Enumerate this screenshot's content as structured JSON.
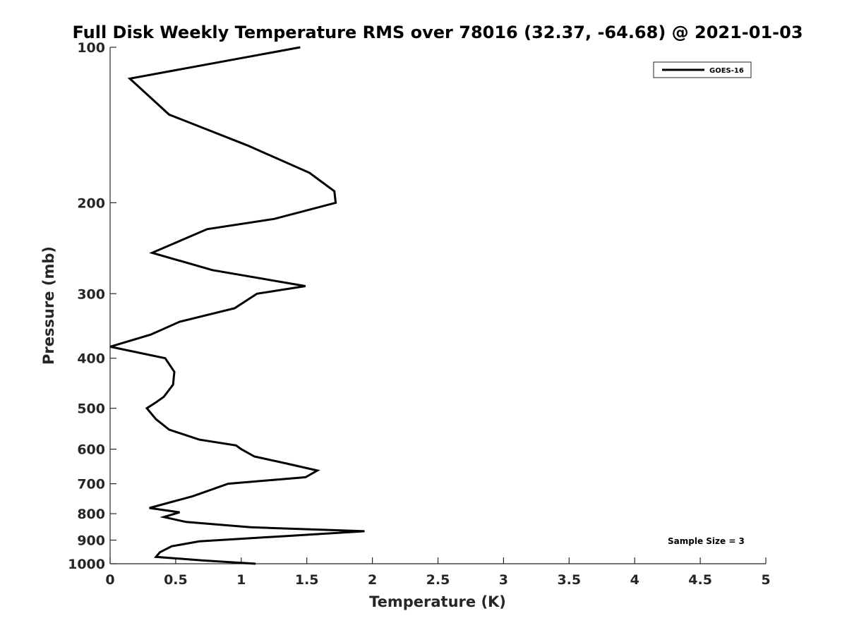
{
  "chart_data": {
    "type": "line",
    "title": "Full Disk Weekly Temperature RMS over 78016 (32.37, -64.68) @ 2021-01-03",
    "xlabel": "Temperature (K)",
    "ylabel": "Pressure (mb)",
    "xlim": [
      0,
      5
    ],
    "ylim": [
      1000,
      100
    ],
    "y_scale": "log",
    "y_reversed": true,
    "grid": false,
    "legend_position": "top-right",
    "x_ticks": [
      "0",
      "0.5",
      "1",
      "1.5",
      "2",
      "2.5",
      "3",
      "3.5",
      "4",
      "4.5",
      "5"
    ],
    "y_ticks": [
      "100",
      "200",
      "300",
      "400",
      "500",
      "600",
      "700",
      "800",
      "900",
      "1000"
    ],
    "series": [
      {
        "name": "GOES-16",
        "color": "#000000",
        "points": [
          [
            1.45,
            100
          ],
          [
            0.15,
            115
          ],
          [
            0.45,
            135
          ],
          [
            1.05,
            155
          ],
          [
            1.52,
            175
          ],
          [
            1.71,
            190
          ],
          [
            1.72,
            200
          ],
          [
            1.25,
            215
          ],
          [
            0.74,
            225
          ],
          [
            0.32,
            250
          ],
          [
            0.78,
            270
          ],
          [
            1.49,
            290
          ],
          [
            1.12,
            300
          ],
          [
            0.95,
            320
          ],
          [
            0.53,
            340
          ],
          [
            0.31,
            360
          ],
          [
            0.0,
            380
          ],
          [
            0.42,
            400
          ],
          [
            0.49,
            425
          ],
          [
            0.48,
            450
          ],
          [
            0.41,
            475
          ],
          [
            0.35,
            487
          ],
          [
            0.28,
            500
          ],
          [
            0.35,
            525
          ],
          [
            0.45,
            550
          ],
          [
            0.68,
            575
          ],
          [
            0.96,
            590
          ],
          [
            1.0,
            600
          ],
          [
            1.1,
            620
          ],
          [
            1.35,
            640
          ],
          [
            1.58,
            660
          ],
          [
            1.49,
            680
          ],
          [
            0.9,
            700
          ],
          [
            0.63,
            740
          ],
          [
            0.3,
            780
          ],
          [
            0.53,
            795
          ],
          [
            0.41,
            812
          ],
          [
            0.58,
            830
          ],
          [
            1.07,
            850
          ],
          [
            1.94,
            865
          ],
          [
            1.3,
            885
          ],
          [
            0.68,
            905
          ],
          [
            0.47,
            925
          ],
          [
            0.38,
            950
          ],
          [
            0.35,
            970
          ],
          [
            0.7,
            985
          ],
          [
            1.11,
            1000
          ]
        ]
      }
    ],
    "annotations": [
      {
        "text": "Sample Size = 3",
        "position": "bottom-right"
      }
    ]
  }
}
